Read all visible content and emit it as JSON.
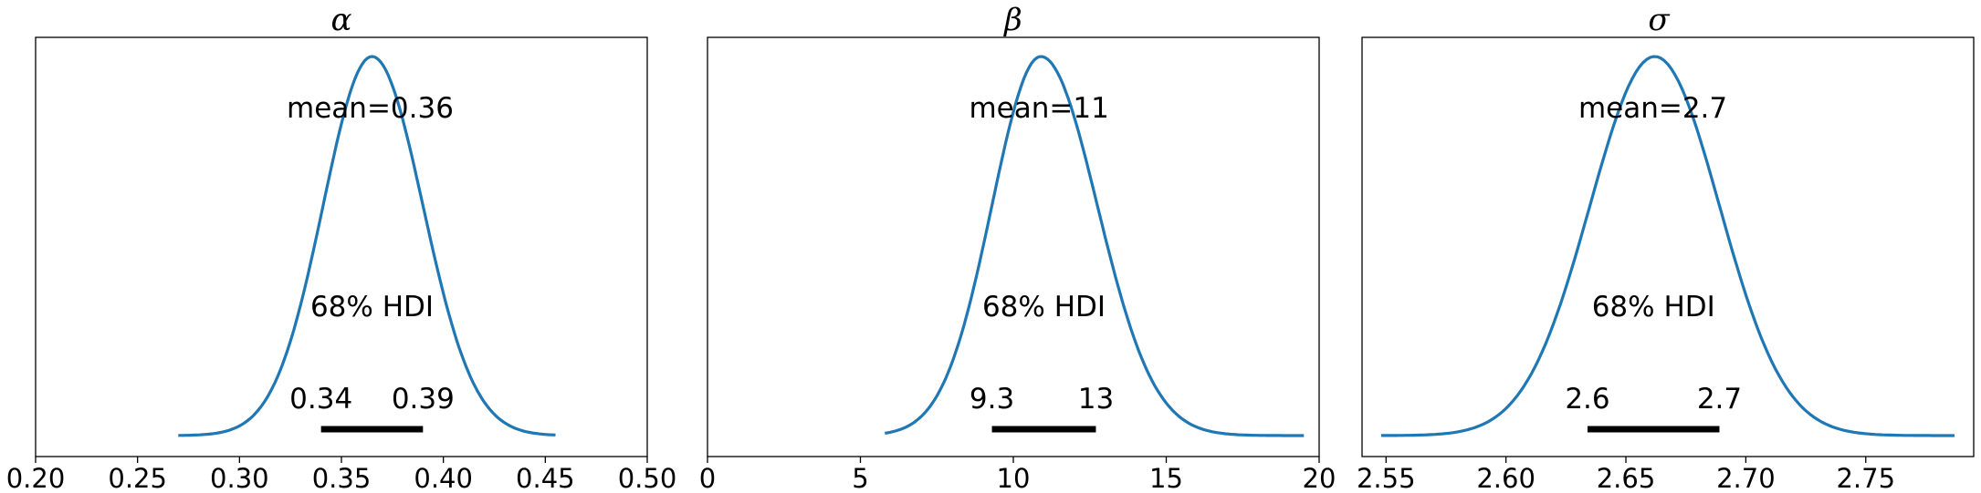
{
  "chart_data": [
    {
      "type": "area",
      "title": "α",
      "xlim": [
        0.2,
        0.5
      ],
      "ticks": [
        "0.20",
        "0.25",
        "0.30",
        "0.35",
        "0.40",
        "0.45",
        "0.50"
      ],
      "tick_values": [
        0.2,
        0.25,
        0.3,
        0.35,
        0.4,
        0.45,
        0.5
      ],
      "range": [
        0.27,
        0.455
      ],
      "peak": 0.365,
      "sd_left": 0.024,
      "sd_right": 0.025,
      "mean_label": "mean=0.36",
      "hdi_label": "68% HDI",
      "hdi": [
        0.34,
        0.39
      ],
      "hdi_low_label": "0.34",
      "hdi_high_label": "0.39",
      "line_color": "#1f77b4"
    },
    {
      "type": "area",
      "title": "β",
      "xlim": [
        0,
        20
      ],
      "ticks": [
        "0",
        "5",
        "10",
        "15",
        "20"
      ],
      "tick_values": [
        0,
        5,
        10,
        15,
        20
      ],
      "range": [
        5.8,
        19.5
      ],
      "peak": 10.9,
      "sd_left": 1.6,
      "sd_right": 1.85,
      "mean_label": "mean=11",
      "hdi_label": "68% HDI",
      "hdi": [
        9.3,
        12.7
      ],
      "hdi_low_label": "9.3",
      "hdi_high_label": "13",
      "line_color": "#1f77b4"
    },
    {
      "type": "area",
      "title": "σ",
      "xlim": [
        2.54,
        2.795
      ],
      "ticks": [
        "2.55",
        "2.60",
        "2.65",
        "2.70",
        "2.75"
      ],
      "tick_values": [
        2.55,
        2.6,
        2.65,
        2.7,
        2.75
      ],
      "range": [
        2.548,
        2.787
      ],
      "peak": 2.662,
      "sd_left": 0.027,
      "sd_right": 0.027,
      "mean_label": "mean=2.7",
      "hdi_label": "68% HDI",
      "hdi": [
        2.634,
        2.689
      ],
      "hdi_low_label": "2.6",
      "hdi_high_label": "2.7",
      "line_color": "#1f77b4"
    }
  ]
}
